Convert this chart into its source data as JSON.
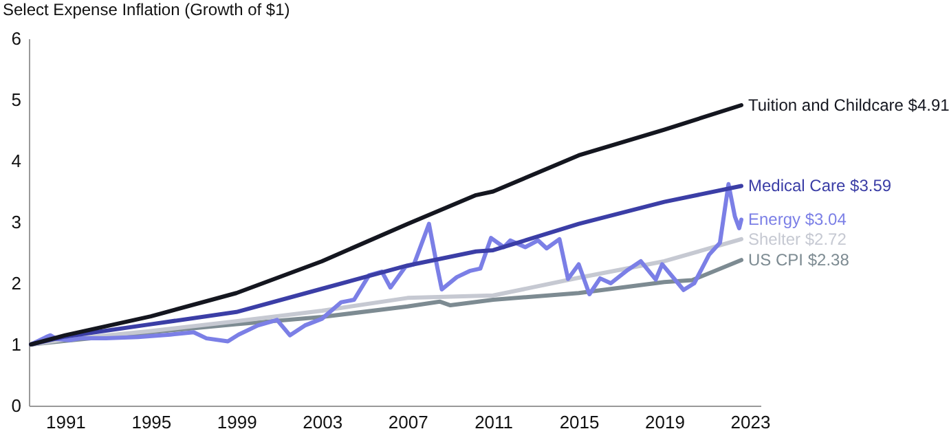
{
  "chart_data": {
    "type": "line",
    "title": "Select Expense Inflation (Growth of $1)",
    "xlim": [
      1989.3,
      2023.5
    ],
    "xticks": [
      1991,
      1995,
      1999,
      2003,
      2007,
      2011,
      2015,
      2019,
      2023
    ],
    "ylim": [
      0,
      6
    ],
    "yticks": [
      0,
      1,
      2,
      3,
      4,
      5,
      6
    ],
    "grid": false,
    "series": [
      {
        "name": "US CPI $2.38",
        "color": "#7d8b92",
        "x": [
          1989.4,
          1991,
          1995,
          1999,
          2003,
          2007,
          2008.5,
          2009,
          2011,
          2015,
          2019,
          2020.3,
          2022.6
        ],
        "values": [
          1.0,
          1.06,
          1.2,
          1.33,
          1.45,
          1.62,
          1.7,
          1.64,
          1.73,
          1.84,
          2.02,
          2.05,
          2.38
        ]
      },
      {
        "name": "Shelter $2.72",
        "color": "#c6c9d2",
        "x": [
          1989.4,
          1991,
          1995,
          1999,
          2003,
          2007,
          2011,
          2015,
          2019,
          2022.6
        ],
        "values": [
          1.0,
          1.08,
          1.22,
          1.38,
          1.55,
          1.76,
          1.8,
          2.09,
          2.36,
          2.72
        ]
      },
      {
        "name": "Energy $3.04",
        "color": "#7b7fe6",
        "x": [
          1989.4,
          1990.1,
          1990.3,
          1990.6,
          1991.2,
          1991.7,
          1992.9,
          1994.4,
          1995.9,
          1997.0,
          1997.6,
          1998.6,
          1999.1,
          2000.0,
          2000.9,
          2001.5,
          2002.2,
          2003.0,
          2003.9,
          2004.5,
          2005.2,
          2005.8,
          2006.2,
          2006.9,
          2007.3,
          2008.0,
          2008.4,
          2008.6,
          2009.3,
          2009.9,
          2010.4,
          2010.9,
          2011.5,
          2011.8,
          2012.5,
          2013.1,
          2013.5,
          2014.1,
          2014.5,
          2015.0,
          2015.5,
          2016.0,
          2016.5,
          2017.3,
          2017.9,
          2018.6,
          2018.9,
          2019.9,
          2020.4,
          2021.1,
          2021.6,
          2022.0,
          2022.3,
          2022.5,
          2022.6
        ],
        "values": [
          1.0,
          1.12,
          1.15,
          1.09,
          1.07,
          1.1,
          1.1,
          1.12,
          1.16,
          1.2,
          1.1,
          1.05,
          1.16,
          1.31,
          1.4,
          1.15,
          1.31,
          1.42,
          1.69,
          1.73,
          2.13,
          2.19,
          1.93,
          2.27,
          2.31,
          2.97,
          2.24,
          1.9,
          2.1,
          2.2,
          2.24,
          2.74,
          2.59,
          2.7,
          2.59,
          2.7,
          2.57,
          2.72,
          2.07,
          2.31,
          1.82,
          2.08,
          2.0,
          2.22,
          2.36,
          2.06,
          2.31,
          1.89,
          2.0,
          2.47,
          2.66,
          3.62,
          3.09,
          2.9,
          3.04
        ]
      },
      {
        "name": "Medical Care $3.59",
        "color": "#3b3ea6",
        "x": [
          1989.4,
          1991,
          1995,
          1999,
          2003,
          2007,
          2010.2,
          2011,
          2015,
          2019,
          2022.6
        ],
        "values": [
          1.0,
          1.13,
          1.33,
          1.53,
          1.91,
          2.29,
          2.52,
          2.54,
          2.97,
          3.33,
          3.59
        ]
      },
      {
        "name": "Tuition and Childcare $4.91",
        "color": "#14161f",
        "x": [
          1989.4,
          1991,
          1995,
          1999,
          2003,
          2007,
          2010.2,
          2011,
          2015,
          2019,
          2022.6
        ],
        "values": [
          1.0,
          1.15,
          1.46,
          1.84,
          2.36,
          2.97,
          3.44,
          3.5,
          4.09,
          4.51,
          4.91
        ]
      }
    ]
  }
}
